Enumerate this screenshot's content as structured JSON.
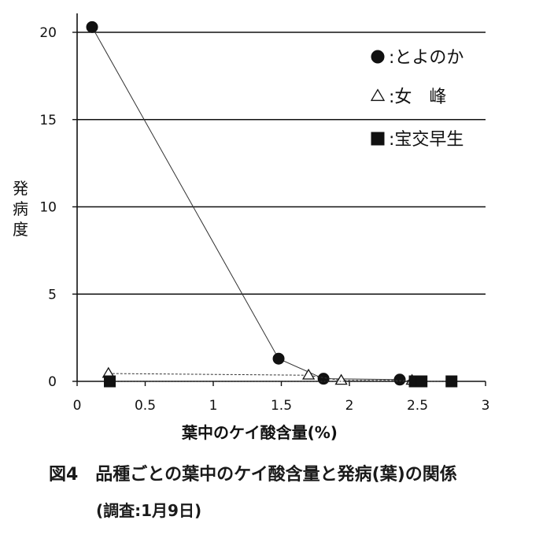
{
  "figure": {
    "caption": "図4　品種ごとの葉中のケイ酸含量と発病(葉)の関係",
    "subcaption": "(調査:1月9日)"
  },
  "chart_data": {
    "type": "line",
    "title": "",
    "xlabel": "葉中のケイ酸含量(%)",
    "ylabel": "発病度",
    "xlim": [
      0,
      3
    ],
    "ylim": [
      0,
      20
    ],
    "xticks": [
      0,
      0.5,
      1,
      1.5,
      2,
      2.5,
      3
    ],
    "xtick_labels": [
      "0",
      "0.5",
      "1",
      "1.5",
      "2",
      "2.5",
      "3"
    ],
    "yticks": [
      0,
      5,
      10,
      15,
      20
    ],
    "ytick_labels": [
      "0",
      "5",
      "10",
      "15",
      "20"
    ],
    "grid": "horizontal",
    "legend_position": "top-right",
    "series": [
      {
        "name": ":とよのか",
        "marker": "circle",
        "color": "#111111",
        "points": [
          [
            0.11,
            20.3
          ],
          [
            1.48,
            1.3
          ],
          [
            1.81,
            0.15
          ],
          [
            2.37,
            0.1
          ]
        ]
      },
      {
        "name": ":女　峰",
        "marker": "triangle-open",
        "color": "#111111",
        "points": [
          [
            0.23,
            0.45
          ],
          [
            1.7,
            0.35
          ],
          [
            1.94,
            0.05
          ],
          [
            2.46,
            0.05
          ]
        ]
      },
      {
        "name": ":宝交早生",
        "marker": "square",
        "color": "#111111",
        "points": [
          [
            0.24,
            0.0
          ],
          [
            2.48,
            0.0
          ],
          [
            2.53,
            0.0
          ],
          [
            2.75,
            0.0
          ]
        ]
      }
    ]
  }
}
